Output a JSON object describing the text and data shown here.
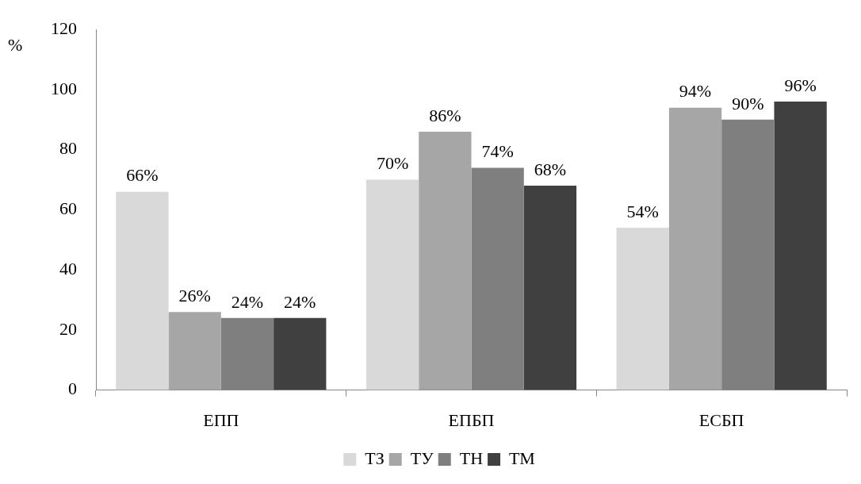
{
  "chart_data": {
    "type": "bar",
    "ylabel": "%",
    "categories": [
      "ЕПП",
      "ЕПБП",
      "ЕСБП"
    ],
    "series": [
      {
        "name": "ТЗ",
        "color": "#d9d9d9",
        "values": [
          66,
          70,
          54
        ],
        "value_labels": [
          "66%",
          "70%",
          "54%"
        ]
      },
      {
        "name": "ТУ",
        "color": "#a6a6a6",
        "values": [
          26,
          86,
          94
        ],
        "value_labels": [
          "26%",
          "86%",
          "94%"
        ]
      },
      {
        "name": "ТН",
        "color": "#7f7f7f",
        "values": [
          24,
          74,
          90
        ],
        "value_labels": [
          "24%",
          "74%",
          "90%"
        ]
      },
      {
        "name": "ТМ",
        "color": "#404040",
        "values": [
          24,
          68,
          96
        ],
        "value_labels": [
          "24%",
          "68%",
          "96%"
        ]
      }
    ],
    "ylim": [
      0,
      120
    ],
    "yticks": [
      0,
      20,
      40,
      60,
      80,
      100,
      120
    ],
    "grid": false,
    "legend": "bottom"
  }
}
